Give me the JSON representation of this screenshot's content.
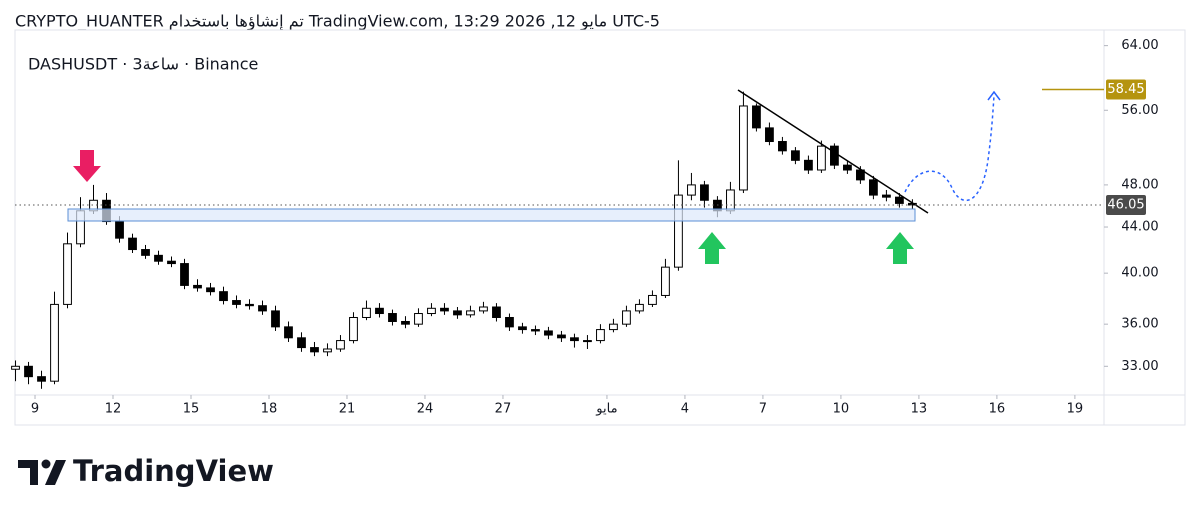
{
  "header": "CRYPTO_HUANTER تم إنشاؤها باستخدام TradingView.com, مايو 12, 2026 13:29 UTC-5",
  "chart_data": {
    "type": "candlestick",
    "legend": "DASHUSDT · 3ساعة · Binance",
    "log_scale": true,
    "up_color": "#ffffff",
    "down_color": "#000000",
    "wick_color": "#000000",
    "x": [
      8.25,
      8.75,
      9.25,
      9.75,
      10.25,
      10.75,
      11.25,
      11.75,
      12.25,
      12.75,
      13.25,
      13.75,
      14.25,
      14.75,
      15.25,
      15.75,
      16.25,
      16.75,
      17.25,
      17.75,
      18.25,
      18.75,
      19.25,
      19.75,
      20.25,
      20.75,
      21.25,
      21.75,
      22.25,
      22.75,
      23.25,
      23.75,
      24.25,
      24.75,
      25.25,
      25.75,
      26.25,
      26.75,
      27.25,
      27.75,
      28.25,
      28.75,
      29.25,
      29.75,
      30.25,
      30.75,
      31.25,
      31.75,
      32.25,
      32.75,
      33.25,
      33.75,
      34.25,
      34.75,
      35.25,
      35.75,
      36.25,
      36.75,
      37.25,
      37.75,
      38.25,
      38.75,
      39.25,
      39.75,
      40.25,
      40.75,
      41.25,
      41.75,
      42.25,
      42.75
    ],
    "open": [
      32.8,
      33.0,
      32.3,
      32.0,
      37.5,
      42.5,
      45.5,
      46.5,
      44.5,
      43.0,
      42.0,
      41.5,
      41.0,
      40.8,
      39.0,
      38.8,
      38.5,
      37.8,
      37.5,
      37.4,
      37.0,
      35.8,
      35.0,
      34.3,
      34.0,
      34.2,
      34.8,
      36.5,
      37.2,
      36.8,
      36.2,
      36.0,
      36.8,
      37.2,
      37.0,
      36.7,
      37.0,
      37.3,
      36.5,
      35.8,
      35.6,
      35.5,
      35.2,
      35.0,
      34.8,
      34.8,
      35.6,
      36.0,
      37.0,
      37.5,
      38.2,
      40.5,
      47.0,
      48.0,
      46.5,
      45.5,
      47.5,
      56.5,
      54.0,
      52.5,
      51.5,
      50.5,
      49.5,
      52.0,
      50.0,
      49.5,
      48.5,
      47.0,
      46.8,
      46.2
    ],
    "high": [
      33.4,
      33.3,
      32.7,
      38.5,
      43.5,
      46.8,
      48.0,
      47.2,
      45.0,
      43.4,
      42.4,
      41.9,
      41.4,
      41.2,
      39.5,
      39.2,
      38.9,
      38.2,
      37.9,
      37.8,
      37.4,
      36.2,
      35.4,
      34.7,
      34.6,
      35.2,
      36.9,
      37.8,
      37.6,
      37.1,
      36.6,
      37.2,
      37.6,
      37.6,
      37.3,
      37.4,
      37.7,
      37.6,
      36.8,
      36.1,
      35.9,
      35.8,
      35.5,
      35.3,
      35.2,
      36.0,
      36.4,
      37.4,
      37.9,
      38.6,
      41.2,
      50.5,
      49.2,
      48.4,
      46.9,
      48.3,
      58.2,
      56.8,
      54.6,
      53.0,
      51.9,
      51.0,
      52.6,
      52.3,
      50.4,
      49.9,
      48.9,
      47.5,
      47.2,
      46.6
    ],
    "low": [
      32.0,
      31.8,
      31.5,
      31.8,
      37.2,
      42.2,
      45.2,
      44.2,
      42.6,
      41.7,
      41.2,
      40.7,
      40.5,
      38.7,
      38.5,
      38.2,
      37.5,
      37.2,
      37.1,
      36.7,
      35.5,
      34.7,
      34.0,
      33.7,
      33.7,
      34.0,
      34.6,
      36.3,
      36.5,
      35.9,
      35.7,
      35.8,
      36.6,
      36.7,
      36.4,
      36.5,
      36.8,
      36.2,
      35.5,
      35.3,
      35.2,
      34.9,
      34.7,
      34.3,
      34.2,
      34.6,
      35.4,
      35.8,
      36.8,
      37.3,
      38.0,
      40.2,
      46.5,
      45.8,
      44.9,
      45.2,
      47.2,
      53.6,
      52.1,
      51.1,
      50.1,
      49.1,
      49.2,
      49.6,
      49.1,
      48.1,
      46.6,
      46.4,
      45.8,
      45.7
    ],
    "close": [
      33.0,
      32.3,
      32.0,
      37.5,
      42.5,
      45.5,
      46.5,
      44.5,
      43.0,
      42.0,
      41.5,
      41.0,
      40.8,
      39.0,
      38.8,
      38.5,
      37.8,
      37.5,
      37.4,
      37.0,
      35.8,
      35.0,
      34.3,
      34.0,
      34.2,
      34.8,
      36.5,
      37.2,
      36.8,
      36.2,
      36.0,
      36.8,
      37.2,
      37.0,
      36.7,
      37.0,
      37.3,
      36.5,
      35.8,
      35.6,
      35.5,
      35.2,
      35.0,
      34.8,
      34.8,
      35.6,
      36.0,
      37.0,
      37.5,
      38.2,
      40.5,
      47.0,
      48.0,
      46.5,
      45.5,
      47.5,
      56.5,
      54.0,
      52.5,
      51.5,
      50.5,
      49.5,
      52.0,
      50.0,
      49.5,
      48.5,
      47.0,
      46.8,
      46.2,
      46.05
    ],
    "xlim": [
      8.23,
      50.12
    ],
    "xticks": [
      9,
      12,
      15,
      18,
      21,
      24,
      27,
      {
        "value": 31,
        "label": "مايو"
      },
      {
        "value": 34,
        "label": "4"
      },
      {
        "value": 37,
        "label": "7"
      },
      {
        "value": 40,
        "label": "10"
      },
      {
        "value": 43,
        "label": "13"
      },
      {
        "value": 46,
        "label": "16"
      },
      {
        "value": 49,
        "label": "19"
      }
    ],
    "ylim": [
      31.1,
      66.1
    ],
    "yticks": [
      {
        "value": 64,
        "label": "64.00"
      },
      {
        "value": 56,
        "label": "56.00"
      },
      {
        "value": 48,
        "label": "48.00"
      },
      {
        "value": 44,
        "label": "44.00"
      },
      {
        "value": 40,
        "label": "40.00"
      },
      {
        "value": 36,
        "label": "36.00"
      },
      {
        "value": 33,
        "label": "33.00"
      }
    ],
    "last_price": {
      "value": 46.05,
      "label": "46.05",
      "color": "#4a4a4a"
    },
    "level": {
      "value": 58.45,
      "label": "58.45",
      "color": "#b5940f"
    }
  },
  "footer": {
    "brand": "TradingView"
  }
}
